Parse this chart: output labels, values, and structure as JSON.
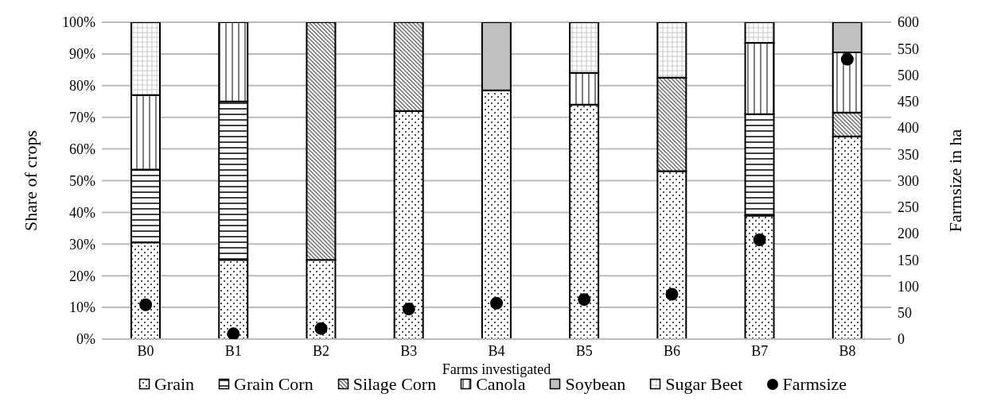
{
  "chart_data": {
    "type": "bar",
    "stacked": true,
    "xlabel": "Farms investigated",
    "ylabel": "Share of crops",
    "y2label": "Farmsize in ha",
    "categories": [
      "B0",
      "B1",
      "B2",
      "B3",
      "B4",
      "B5",
      "B6",
      "B7",
      "B8"
    ],
    "series": [
      {
        "name": "Grain",
        "color": "#000000",
        "values": [
          30.5,
          25,
          25,
          72,
          78.5,
          74,
          53,
          39,
          64
        ]
      },
      {
        "name": "Grain Corn",
        "color": "#000000",
        "values": [
          23,
          50,
          0,
          0,
          0,
          0,
          0,
          32,
          0
        ]
      },
      {
        "name": "Silage Corn",
        "color": "#000000",
        "values": [
          0,
          0,
          75,
          28,
          0,
          0,
          29.5,
          0,
          7.5
        ]
      },
      {
        "name": "Canola",
        "color": "#000000",
        "values": [
          23.5,
          25,
          0,
          0,
          0,
          10,
          0,
          22.5,
          19
        ]
      },
      {
        "name": "Soybean",
        "color": "#000000",
        "values": [
          0,
          0,
          0,
          0,
          21.5,
          0,
          0,
          0,
          9.5
        ]
      },
      {
        "name": "Sugar Beet",
        "color": "#000000",
        "values": [
          23,
          0,
          0,
          0,
          0,
          16,
          17.5,
          6.5,
          0
        ]
      },
      {
        "name": "Farmsize",
        "type": "scatter",
        "axis": "y2",
        "color": "#000000",
        "values": [
          65,
          10,
          20,
          57,
          68,
          75,
          85,
          188,
          530
        ]
      }
    ],
    "ylim": [
      0,
      100
    ],
    "yticks": [
      {
        "value": 0,
        "label": "0%"
      },
      {
        "value": 10,
        "label": "10%"
      },
      {
        "value": 20,
        "label": "20%"
      },
      {
        "value": 30,
        "label": "30%"
      },
      {
        "value": 40,
        "label": "40%"
      },
      {
        "value": 50,
        "label": "50%"
      },
      {
        "value": 60,
        "label": "60%"
      },
      {
        "value": 70,
        "label": "70%"
      },
      {
        "value": 80,
        "label": "80%"
      },
      {
        "value": 90,
        "label": "90%"
      },
      {
        "value": 100,
        "label": "100%"
      }
    ],
    "y2lim": [
      0,
      600
    ],
    "y2ticks": [
      0,
      50,
      100,
      150,
      200,
      250,
      300,
      350,
      400,
      450,
      500,
      550,
      600
    ],
    "grid": "y",
    "legend": "bottom",
    "marker": "circle"
  }
}
